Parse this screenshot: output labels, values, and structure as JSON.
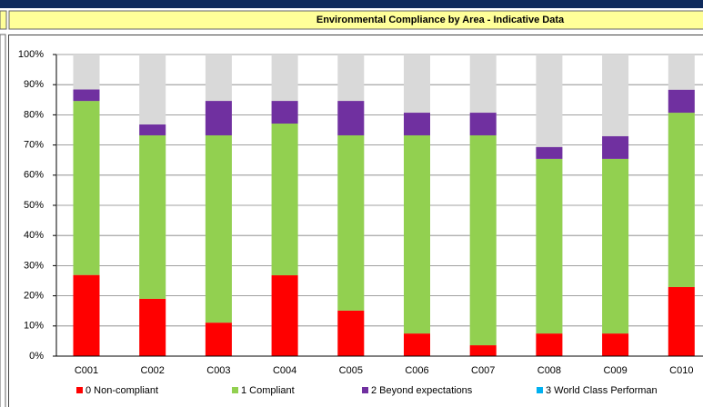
{
  "chart_data": {
    "type": "stacked_bar",
    "title": "Environmental Compliance by Area - Indicative Data",
    "categories": [
      "C001",
      "C002",
      "C003",
      "C004",
      "C005",
      "C006",
      "C007",
      "C008",
      "C009",
      "C010"
    ],
    "series": [
      {
        "name": "0 Non-compliant",
        "color": "#ff0000",
        "values": [
          26.9,
          19.0,
          11.1,
          26.8,
          15.1,
          7.5,
          3.6,
          7.5,
          7.5,
          22.9
        ]
      },
      {
        "name": "1 Compliant",
        "color": "#92d050",
        "values": [
          57.7,
          54.2,
          62.1,
          50.3,
          58.1,
          65.7,
          69.6,
          57.9,
          57.9,
          57.8
        ]
      },
      {
        "name": "2 Beyond expectations",
        "color": "#7030a0",
        "values": [
          3.8,
          3.6,
          11.4,
          7.5,
          11.4,
          7.5,
          7.5,
          3.9,
          7.5,
          7.6
        ]
      },
      {
        "name": "3 World Class Performan",
        "color": "#00b0f0",
        "values": [
          0,
          0,
          0,
          0,
          0,
          0,
          0,
          0,
          0,
          0
        ]
      }
    ],
    "ylim": [
      0,
      100
    ],
    "yticks": [
      {
        "value": 0,
        "label": "0%"
      },
      {
        "value": 10,
        "label": "10%"
      },
      {
        "value": 20,
        "label": "20%"
      },
      {
        "value": 30,
        "label": "30%"
      },
      {
        "value": 40,
        "label": "40%"
      },
      {
        "value": 50,
        "label": "50%"
      },
      {
        "value": 60,
        "label": "60%"
      },
      {
        "value": 70,
        "label": "70%"
      },
      {
        "value": 80,
        "label": "80%"
      },
      {
        "value": 90,
        "label": "90%"
      },
      {
        "value": 100,
        "label": "100%"
      }
    ],
    "grid": true
  }
}
